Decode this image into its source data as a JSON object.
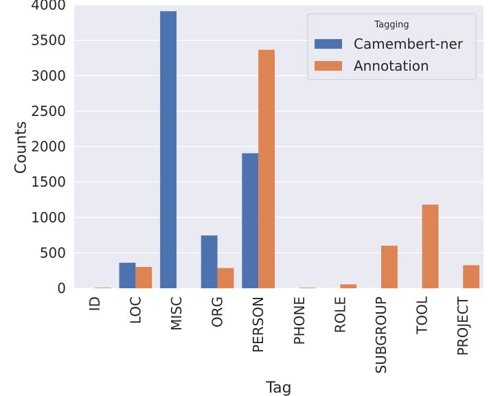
{
  "chart_data": {
    "type": "bar",
    "categories": [
      "ID",
      "LOC",
      "MISC",
      "ORG",
      "PERSON",
      "PHONE",
      "ROLE",
      "SUBGROUP",
      "TOOL",
      "PROJECT"
    ],
    "series": [
      {
        "name": "Camembert-ner",
        "color": "#4c72b0",
        "values": [
          0,
          360,
          3910,
          745,
          1905,
          0,
          0,
          0,
          0,
          0
        ]
      },
      {
        "name": "Annotation",
        "color": "#dd8452",
        "values": [
          8,
          300,
          0,
          285,
          3365,
          8,
          55,
          600,
          1180,
          325
        ]
      }
    ],
    "xlabel": "Tag",
    "ylabel": "Counts",
    "ylim": [
      0,
      4000
    ],
    "yticks": [
      "0",
      "500",
      "1000",
      "1500",
      "2000",
      "2500",
      "3000",
      "3500",
      "4000"
    ],
    "legend": {
      "title": "Tagging",
      "position": "top-right"
    },
    "grid": true,
    "style": {
      "plot_background": "#eaeaf2",
      "grid_color": "#ffffff"
    }
  }
}
